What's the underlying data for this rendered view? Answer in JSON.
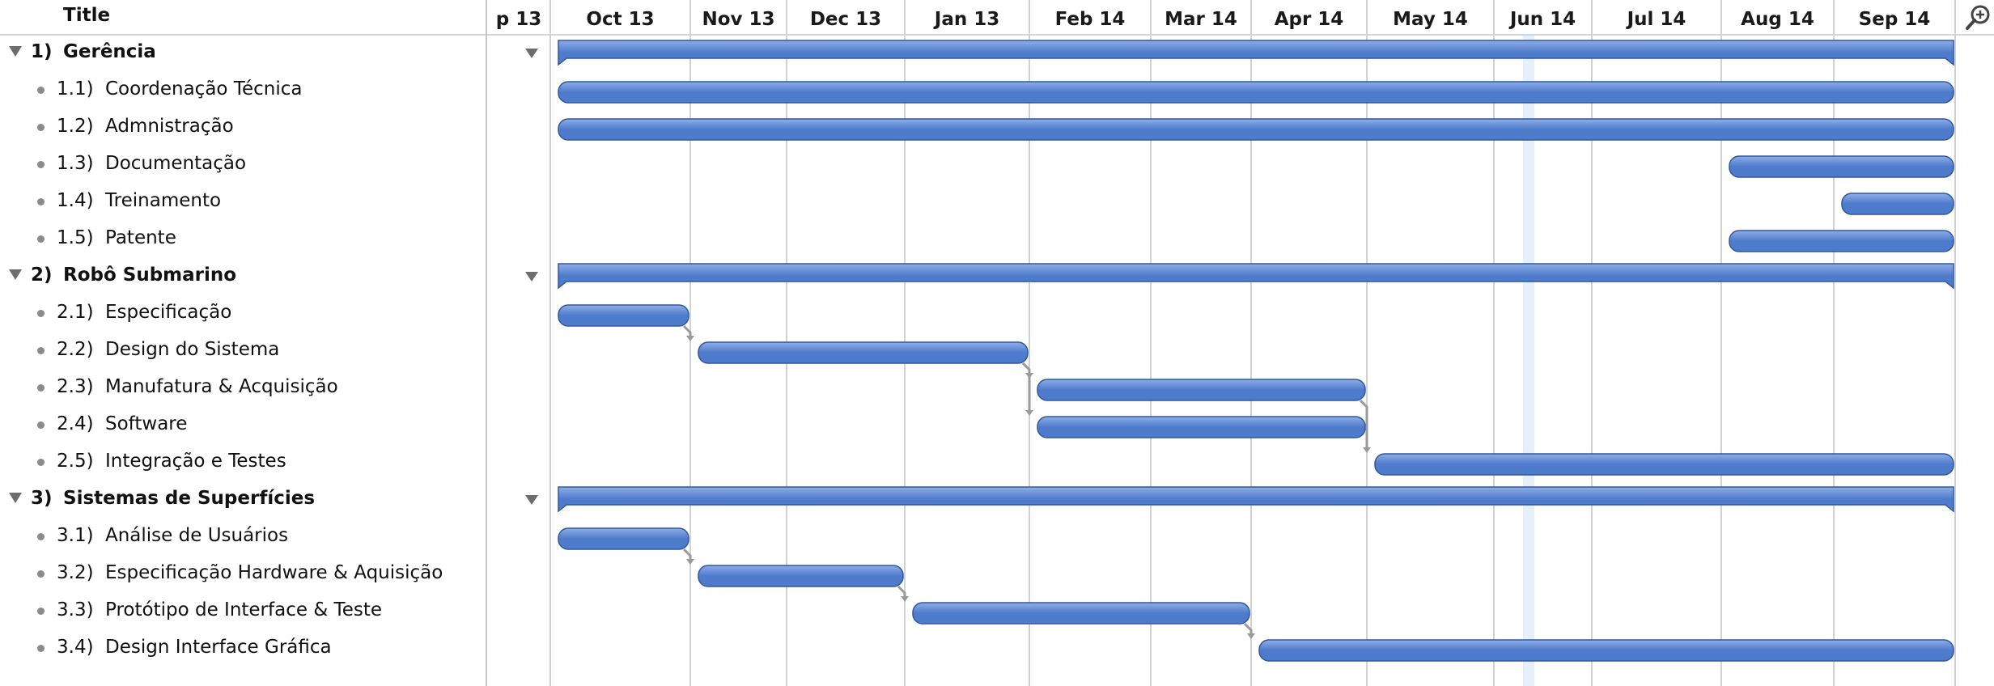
{
  "outline": {
    "header_title": "Title",
    "rows": [
      {
        "kind": "group",
        "num": "1)",
        "label": "Gerência"
      },
      {
        "kind": "task",
        "num": "1.1)",
        "label": "Coordenação Técnica"
      },
      {
        "kind": "task",
        "num": "1.2)",
        "label": "Admnistração"
      },
      {
        "kind": "task",
        "num": "1.3)",
        "label": "Documentação"
      },
      {
        "kind": "task",
        "num": "1.4)",
        "label": "Treinamento"
      },
      {
        "kind": "task",
        "num": "1.5)",
        "label": "Patente"
      },
      {
        "kind": "group",
        "num": "2)",
        "label": "Robô Submarino"
      },
      {
        "kind": "task",
        "num": "2.1)",
        "label": "Especificação"
      },
      {
        "kind": "task",
        "num": "2.2)",
        "label": "Design do Sistema"
      },
      {
        "kind": "task",
        "num": "2.3)",
        "label": "Manufatura & Acquisição"
      },
      {
        "kind": "task",
        "num": "2.4)",
        "label": "Software"
      },
      {
        "kind": "task",
        "num": "2.5)",
        "label": "Integração e Testes"
      },
      {
        "kind": "group",
        "num": "3)",
        "label": "Sistemas de Superfícies"
      },
      {
        "kind": "task",
        "num": "3.1)",
        "label": "Análise de Usuários"
      },
      {
        "kind": "task",
        "num": "3.2)",
        "label": "Especificação Hardware & Aquisição"
      },
      {
        "kind": "task",
        "num": "3.3)",
        "label": "Protótipo de Interface & Teste"
      },
      {
        "kind": "task",
        "num": "3.4)",
        "label": "Design Interface Gráfica"
      }
    ]
  },
  "timeline": {
    "months": [
      "p 13",
      "Oct 13",
      "Nov 13",
      "Dec 13",
      "Jan 13",
      "Feb 14",
      "Mar 14",
      "Apr 14",
      "May 14",
      "Jun 14",
      "Jul 14",
      "Aug 14",
      "Sep 14"
    ],
    "today_month_index": 9,
    "zoom_icon": "zoom-icon"
  },
  "colors": {
    "bar": "#4f7bcc",
    "bar_light": "#8eaee6",
    "bar_border": "#31579d",
    "grid": "#d2d2d2",
    "today_band": "#e6f0fb",
    "arrow": "#9a9a9a"
  },
  "chart_data": {
    "type": "gantt",
    "tasks": [
      {
        "id": "1",
        "label": "Gerência",
        "start": "2013-10-01",
        "end": "2014-09-30",
        "summary": true
      },
      {
        "id": "1.1",
        "label": "Coordenação Técnica",
        "start": "2013-10-01",
        "end": "2014-09-30"
      },
      {
        "id": "1.2",
        "label": "Admnistração",
        "start": "2013-10-01",
        "end": "2014-09-30"
      },
      {
        "id": "1.3",
        "label": "Documentação",
        "start": "2014-08-01",
        "end": "2014-09-30"
      },
      {
        "id": "1.4",
        "label": "Treinamento",
        "start": "2014-09-01",
        "end": "2014-09-30"
      },
      {
        "id": "1.5",
        "label": "Patente",
        "start": "2014-08-01",
        "end": "2014-09-30"
      },
      {
        "id": "2",
        "label": "Robô Submarino",
        "start": "2013-10-01",
        "end": "2014-09-30",
        "summary": true
      },
      {
        "id": "2.1",
        "label": "Especificação",
        "start": "2013-10-01",
        "end": "2013-10-31"
      },
      {
        "id": "2.2",
        "label": "Design do Sistema",
        "start": "2013-11-01",
        "end": "2014-01-31"
      },
      {
        "id": "2.3",
        "label": "Manufatura & Acquisição",
        "start": "2014-02-01",
        "end": "2014-04-30",
        "depends_on": "2.2"
      },
      {
        "id": "2.4",
        "label": "Software",
        "start": "2014-02-01",
        "end": "2014-04-30",
        "depends_on": "2.2"
      },
      {
        "id": "2.5",
        "label": "Integração e Testes",
        "start": "2014-05-01",
        "end": "2014-09-30",
        "depends_on": "2.3"
      },
      {
        "id": "3",
        "label": "Sistemas de Superfícies",
        "start": "2013-10-01",
        "end": "2014-09-30",
        "summary": true
      },
      {
        "id": "3.1",
        "label": "Análise de Usuários",
        "start": "2013-10-01",
        "end": "2013-10-31"
      },
      {
        "id": "3.2",
        "label": "Especificação Hardware & Aquisição",
        "start": "2013-11-01",
        "end": "2013-12-31",
        "depends_on": "3.1"
      },
      {
        "id": "3.3",
        "label": "Protótipo de Interface & Teste",
        "start": "2014-01-01",
        "end": "2014-03-31",
        "depends_on": "3.2"
      },
      {
        "id": "3.4",
        "label": "Design Interface Gráfica",
        "start": "2014-04-01",
        "end": "2014-09-30",
        "depends_on": "3.3"
      }
    ],
    "dependencies": [
      [
        "2.1",
        "2.2"
      ],
      [
        "2.2",
        "2.3"
      ],
      [
        "2.2",
        "2.4"
      ],
      [
        "2.3",
        "2.5"
      ],
      [
        "3.1",
        "3.2"
      ],
      [
        "3.2",
        "3.3"
      ],
      [
        "3.3",
        "3.4"
      ]
    ]
  }
}
